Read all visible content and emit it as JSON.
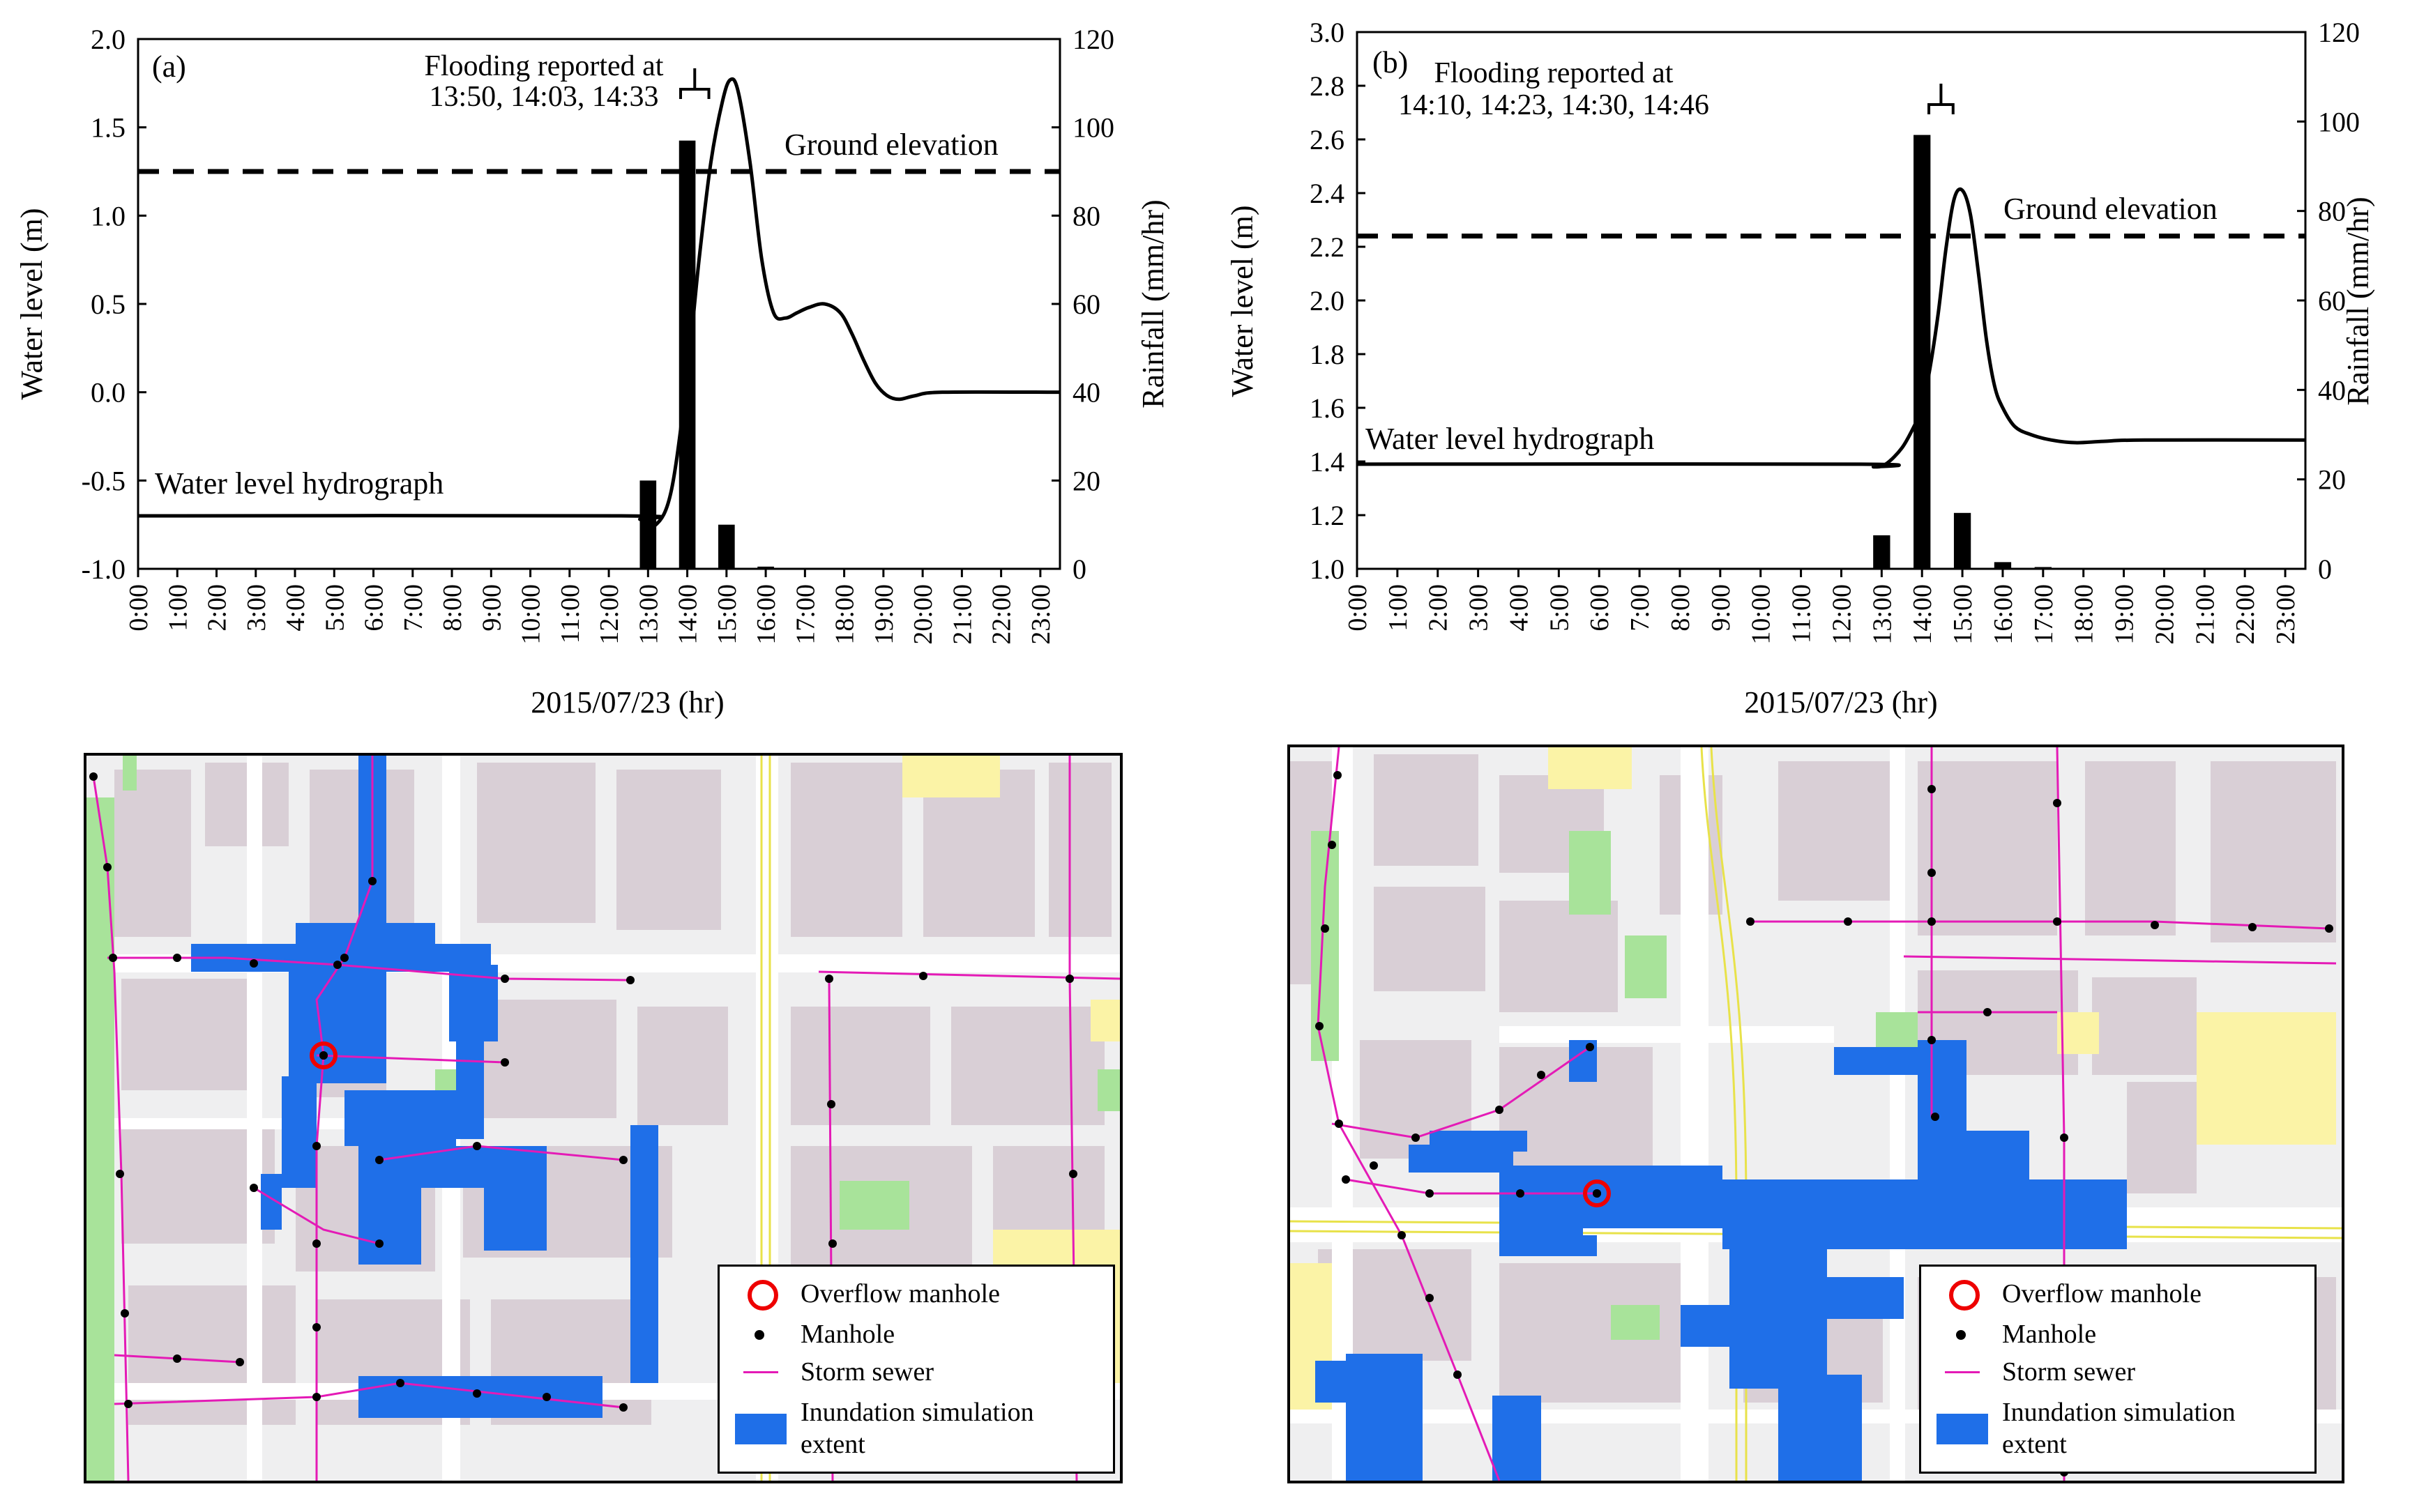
{
  "chart_data": [
    {
      "type": "bar+line",
      "panel_label": "(a)",
      "xlabel": "2015/07/23  (hr)",
      "ylabel_left": "Water level (m)",
      "ylabel_right": "Rainfall  (mm/hr)",
      "x_tick_labels": [
        "0:00",
        "1:00",
        "2:00",
        "3:00",
        "4:00",
        "5:00",
        "6:00",
        "7:00",
        "8:00",
        "9:00",
        "10:00",
        "11:00",
        "12:00",
        "13:00",
        "14:00",
        "15:00",
        "16:00",
        "17:00",
        "18:00",
        "19:00",
        "20:00",
        "21:00",
        "22:00",
        "23:00"
      ],
      "ylim_left": [
        -1.0,
        2.0
      ],
      "y_left_ticks": [
        -1.0,
        -0.5,
        0.0,
        0.5,
        1.0,
        1.5,
        2.0
      ],
      "y_left_tick_labels": [
        "-1.0",
        "-0.5",
        "0.0",
        "0.5",
        "1.0",
        "1.5",
        "2.0"
      ],
      "ylim_right": [
        0,
        120
      ],
      "y_right_ticks": [
        0,
        20,
        40,
        60,
        80,
        100,
        120
      ],
      "xlim": [
        0,
        23.5
      ],
      "ground_elevation": 1.25,
      "ground_label": "Ground elevation",
      "hydrograph_label": "Water level  hydrograph",
      "flood_note_line1": "Flooding reported at",
      "flood_note_line2": "13:50, 14:03, 14:33",
      "flood_bracket_x": [
        13.83,
        14.55
      ],
      "rainfall": {
        "x": [
          13,
          14,
          15,
          16
        ],
        "values": [
          20,
          97,
          10,
          0.5
        ]
      },
      "water_level": {
        "x": [
          0,
          12.3,
          12.8,
          13.2,
          13.6,
          14.0,
          14.3,
          14.6,
          14.9,
          15.1,
          15.3,
          15.6,
          15.9,
          16.2,
          16.5,
          16.8,
          17.1,
          17.5,
          17.9,
          18.2,
          18.5,
          18.8,
          19.1,
          19.4,
          19.8,
          20.5,
          23.5
        ],
        "values": [
          -0.7,
          -0.7,
          -0.72,
          -0.75,
          -0.55,
          0.1,
          0.75,
          1.3,
          1.65,
          1.77,
          1.7,
          1.3,
          0.75,
          0.45,
          0.42,
          0.45,
          0.48,
          0.5,
          0.45,
          0.33,
          0.18,
          0.05,
          -0.02,
          -0.04,
          -0.02,
          0.0,
          0.0
        ]
      }
    },
    {
      "type": "bar+line",
      "panel_label": "(b)",
      "xlabel": "2015/07/23  (hr)",
      "ylabel_left": "Water level (m)",
      "ylabel_right": "Rainfall  (mm/hr)",
      "x_tick_labels": [
        "0:00",
        "1:00",
        "2:00",
        "3:00",
        "4:00",
        "5:00",
        "6:00",
        "7:00",
        "8:00",
        "9:00",
        "10:00",
        "11:00",
        "12:00",
        "13:00",
        "14:00",
        "15:00",
        "16:00",
        "17:00",
        "18:00",
        "19:00",
        "20:00",
        "21:00",
        "22:00",
        "23:00"
      ],
      "ylim_left": [
        1.0,
        3.0
      ],
      "y_left_ticks": [
        1.0,
        1.2,
        1.4,
        1.6,
        1.8,
        2.0,
        2.2,
        2.4,
        2.6,
        2.8,
        3.0
      ],
      "y_left_tick_labels": [
        "1.0",
        "1.2",
        "1.4",
        "1.6",
        "1.8",
        "2.0",
        "2.2",
        "2.4",
        "2.6",
        "2.8",
        "3.0"
      ],
      "ylim_right": [
        0,
        120
      ],
      "y_right_ticks": [
        0,
        20,
        40,
        60,
        80,
        100,
        120
      ],
      "xlim": [
        0,
        23.5
      ],
      "ground_elevation": 2.24,
      "ground_label": "Ground elevation",
      "hydrograph_label": "Water level  hydrograph",
      "flood_note_line1": "Flooding reported at",
      "flood_note_line2": "14:10, 14:23, 14:30, 14:46",
      "flood_bracket_x": [
        14.17,
        14.77
      ],
      "rainfall": {
        "x": [
          13,
          14,
          15,
          16,
          17
        ],
        "values": [
          7.5,
          97,
          12.5,
          1.5,
          0.4
        ]
      },
      "water_level": {
        "x": [
          0,
          12.4,
          12.8,
          13.1,
          13.5,
          13.8,
          14.0,
          14.2,
          14.4,
          14.6,
          14.8,
          15.0,
          15.2,
          15.4,
          15.6,
          15.8,
          16.0,
          16.3,
          16.7,
          17.2,
          17.8,
          18.5,
          19.5,
          23.5
        ],
        "values": [
          1.39,
          1.39,
          1.38,
          1.39,
          1.45,
          1.53,
          1.6,
          1.75,
          1.95,
          2.2,
          2.38,
          2.41,
          2.32,
          2.1,
          1.85,
          1.68,
          1.6,
          1.53,
          1.5,
          1.48,
          1.47,
          1.475,
          1.48,
          1.48
        ]
      }
    }
  ],
  "legend": {
    "overflow_manhole": "Overflow manhole",
    "manhole": "Manhole",
    "storm_sewer": "Storm sewer",
    "inundation_line1": "Inundation simulation",
    "inundation_line2": "extent"
  },
  "colors": {
    "sewer": "#e41ab6",
    "manhole": "#000000",
    "overflow": "#ee0000",
    "inundation": "#1f6fe8",
    "building": "#d9cfd6",
    "road": "#ffffff",
    "park": "#a8e39a",
    "school": "#fbf3a6"
  }
}
